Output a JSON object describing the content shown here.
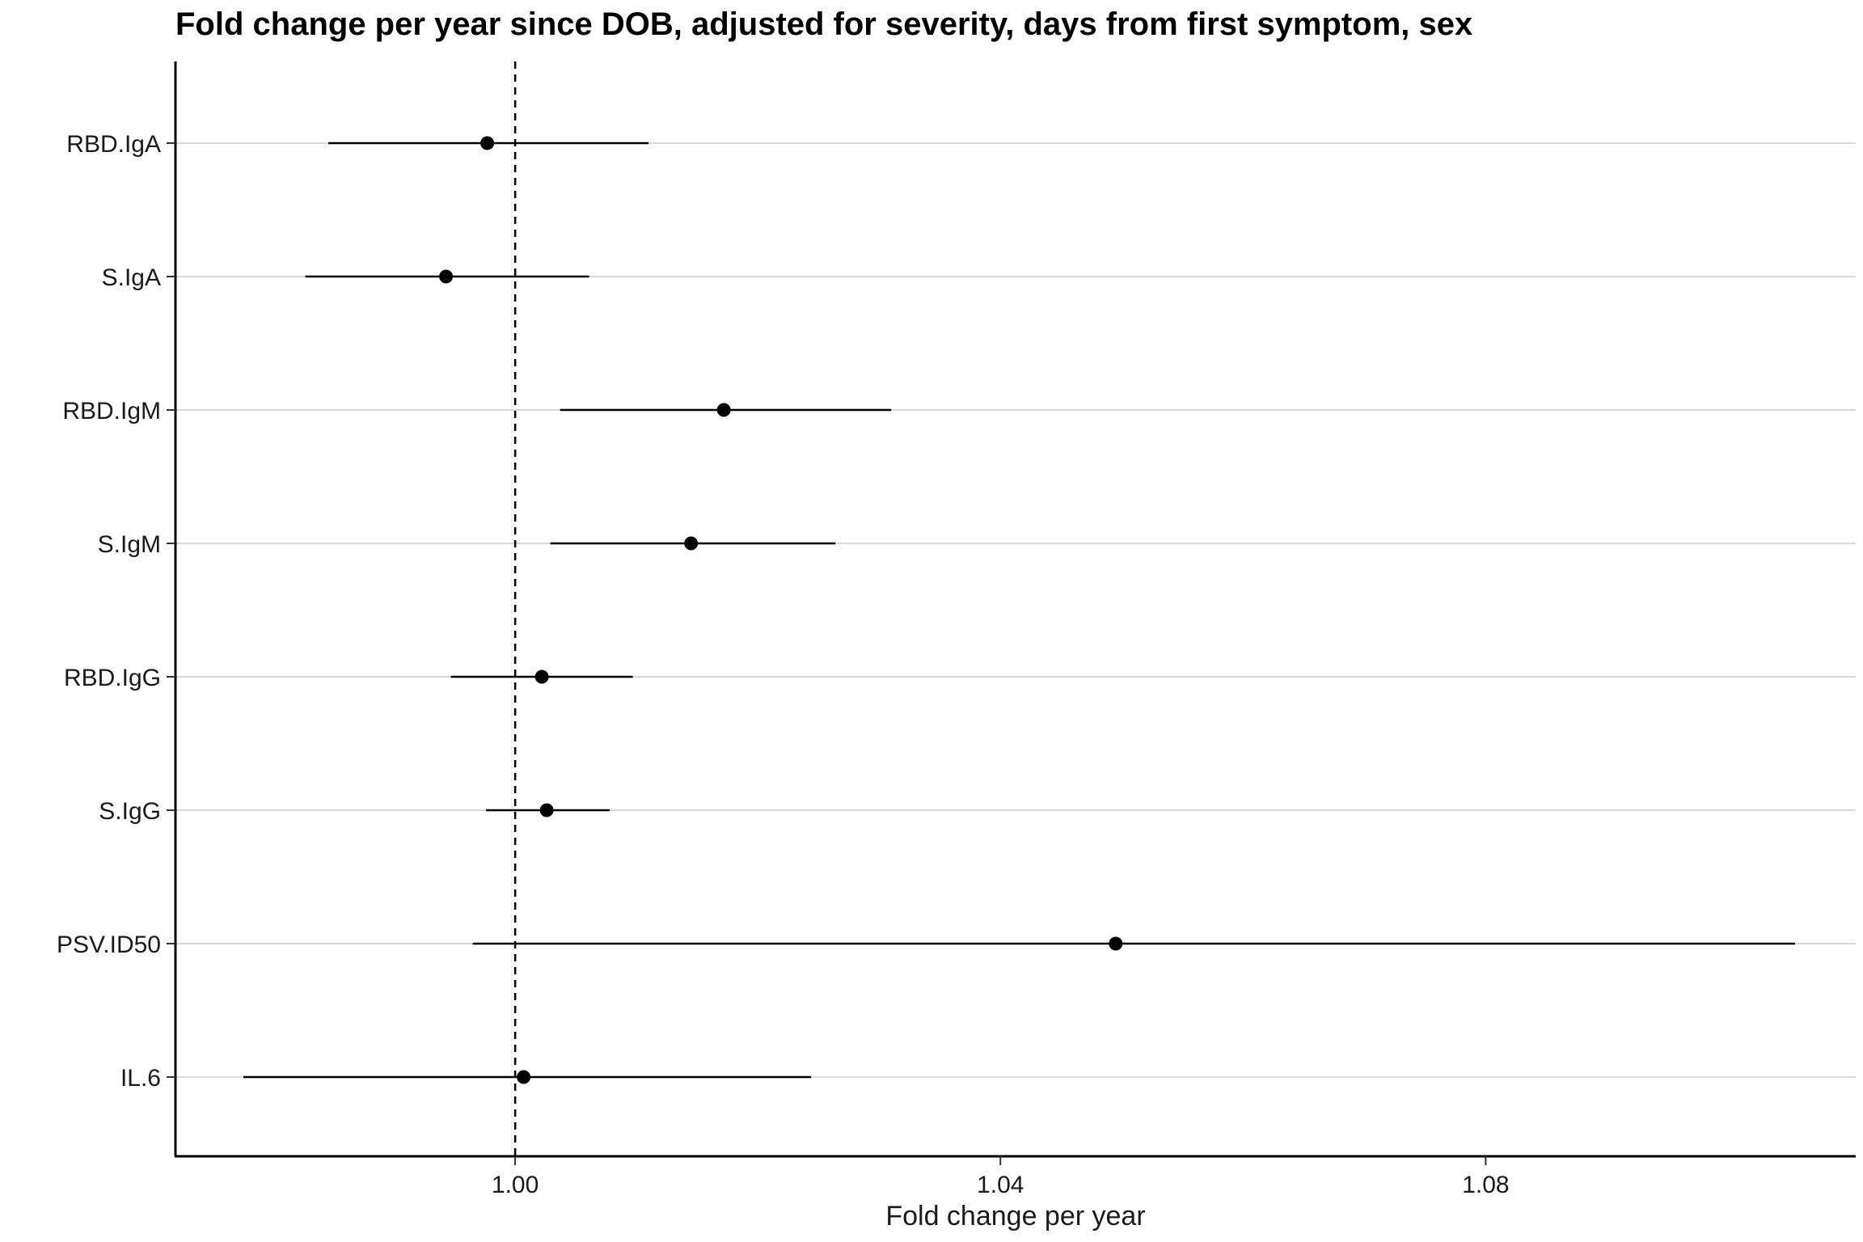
{
  "chart_data": {
    "type": "forest",
    "title": "Fold change per year since DOB, adjusted for severity, days from first symptom, sex",
    "xlabel": "Fold change per year",
    "ylabel": "",
    "xlim": [
      0.972,
      1.1105
    ],
    "xticks": [
      1.0,
      1.04,
      1.08
    ],
    "xtick_labels": [
      "1.00",
      "1.04",
      "1.08"
    ],
    "reference_line": 1.0,
    "grid": "horizontal",
    "categories": [
      "RBD.IgA",
      "S.IgA",
      "RBD.IgM",
      "S.IgM",
      "RBD.IgG",
      "S.IgG",
      "PSV.ID50",
      "IL.6"
    ],
    "estimates": [
      0.9977,
      0.9943,
      1.0172,
      1.0145,
      1.0022,
      1.0026,
      1.0495,
      1.0007
    ],
    "lower": [
      0.9846,
      0.9827,
      1.0037,
      1.0029,
      0.9947,
      0.9976,
      0.9965,
      0.9776
    ],
    "upper": [
      1.011,
      1.0061,
      1.031,
      1.0264,
      1.0097,
      1.0078,
      1.1055,
      1.0244
    ]
  }
}
